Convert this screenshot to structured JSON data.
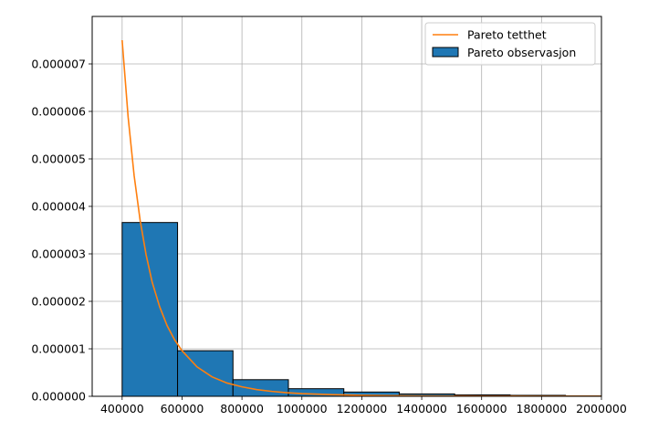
{
  "chart_data": {
    "type": "bar",
    "title": "",
    "xlabel": "",
    "ylabel": "",
    "xlim": [
      300000,
      2000000
    ],
    "ylim": [
      0,
      8e-06
    ],
    "grid": true,
    "legend_position": "top-right",
    "x_ticks": [
      400000,
      600000,
      800000,
      1000000,
      1200000,
      1400000,
      1600000,
      1800000,
      2000000
    ],
    "x_tick_labels": [
      "400000",
      "600000",
      "800000",
      "1000000",
      "1200000",
      "1400000",
      "1600000",
      "1800000",
      "2000000"
    ],
    "y_ticks": [
      0,
      1e-06,
      2e-06,
      3e-06,
      4e-06,
      5e-06,
      6e-06,
      7e-06
    ],
    "y_tick_labels": [
      "0.000000",
      "0.000001",
      "0.000002",
      "0.000003",
      "0.000004",
      "0.000005",
      "0.000006",
      "0.000007"
    ],
    "series": [
      {
        "name": "Pareto tetthet",
        "kind": "line",
        "color": "#ff7f0e",
        "x": [
          400000,
          420000,
          440000,
          460000,
          480000,
          500000,
          525000,
          550000,
          575000,
          600000,
          650000,
          700000,
          750000,
          800000,
          850000,
          900000,
          950000,
          1000000,
          1100000,
          1200000,
          1300000,
          1400000,
          1500000,
          1600000,
          1700000,
          1800000,
          1900000,
          2000000
        ],
        "y": [
          7.5e-06,
          5.88e-06,
          4.65e-06,
          3.71e-06,
          2.98e-06,
          2.41e-06,
          1.89e-06,
          1.49e-06,
          1.19e-06,
          9.6e-07,
          6.2e-07,
          4.1e-07,
          2.8e-07,
          2e-07,
          1.4e-07,
          1.03e-07,
          7.6e-08,
          5.7e-08,
          3.4e-08,
          2.1e-08,
          1.3e-08,
          8.7e-09,
          5.9e-09,
          4.1e-09,
          2.9e-09,
          2.1e-09,
          1.5e-09,
          1.1e-09
        ]
      },
      {
        "name": "Pareto observasjon",
        "kind": "bar",
        "color": "#1f77b4",
        "bins": [
          {
            "x0": 400000,
            "x1": 585000,
            "value": 3.66e-06
          },
          {
            "x0": 585000,
            "x1": 770000,
            "value": 9.6e-07
          },
          {
            "x0": 770000,
            "x1": 955000,
            "value": 3.5e-07
          },
          {
            "x0": 955000,
            "x1": 1140000,
            "value": 1.6e-07
          },
          {
            "x0": 1140000,
            "x1": 1325000,
            "value": 9e-08
          },
          {
            "x0": 1325000,
            "x1": 1510000,
            "value": 5e-08
          },
          {
            "x0": 1510000,
            "x1": 1695000,
            "value": 3e-08
          },
          {
            "x0": 1695000,
            "x1": 1880000,
            "value": 2e-08
          },
          {
            "x0": 1880000,
            "x1": 2065000,
            "value": 1e-08
          }
        ]
      }
    ]
  }
}
